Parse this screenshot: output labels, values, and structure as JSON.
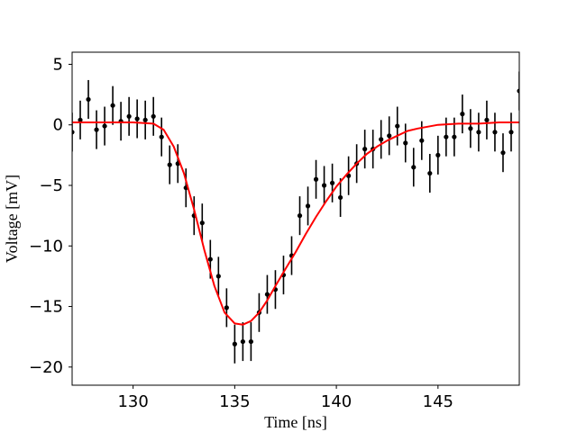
{
  "chart_data": {
    "type": "scatter",
    "xlabel": "Time [ns]",
    "ylabel": "Voltage [mV]",
    "xlim": [
      127,
      149
    ],
    "ylim": [
      -21.5,
      6
    ],
    "x_ticks": [
      130,
      135,
      140,
      145
    ],
    "x_tick_labels": [
      "130",
      "135",
      "140",
      "145"
    ],
    "y_ticks": [
      5,
      0,
      -5,
      -10,
      -15,
      -20
    ],
    "y_tick_labels": [
      "5",
      "0",
      "−5",
      "−10",
      "−15",
      "−20"
    ],
    "grid": false,
    "legend": "none",
    "colors": {
      "points": "#000000",
      "fit": "#ff0000",
      "axes": "#000000"
    },
    "series": [
      {
        "kind": "errorbar-points",
        "x": [
          127.0,
          127.4,
          127.8,
          128.2,
          128.6,
          129.0,
          129.4,
          129.8,
          130.2,
          130.6,
          131.0,
          131.4,
          131.8,
          132.2,
          132.6,
          133.0,
          133.4,
          133.8,
          134.2,
          134.6,
          135.0,
          135.4,
          135.8,
          136.2,
          136.6,
          137.0,
          137.4,
          137.8,
          138.2,
          138.6,
          139.0,
          139.4,
          139.8,
          140.2,
          140.6,
          141.0,
          141.4,
          141.8,
          142.2,
          142.6,
          143.0,
          143.4,
          143.8,
          144.2,
          144.6,
          145.0,
          145.4,
          145.8,
          146.2,
          146.6,
          147.0,
          147.4,
          147.8,
          148.2,
          148.6,
          149.0
        ],
        "y": [
          -0.6,
          0.4,
          2.1,
          -0.4,
          -0.1,
          1.6,
          0.3,
          0.7,
          0.5,
          0.4,
          0.7,
          -1.0,
          -3.3,
          -3.2,
          -5.2,
          -7.5,
          -8.1,
          -11.1,
          -12.5,
          -15.1,
          -18.1,
          -17.9,
          -17.9,
          -15.5,
          -14.0,
          -13.6,
          -12.4,
          -10.8,
          -7.5,
          -6.7,
          -4.5,
          -5.0,
          -4.8,
          -6.0,
          -4.2,
          -3.2,
          -2.0,
          -2.0,
          -1.2,
          -0.9,
          -0.1,
          -1.5,
          -3.5,
          -1.3,
          -4.0,
          -2.5,
          -1.0,
          -1.0,
          0.9,
          -0.3,
          -0.6,
          0.4,
          -0.6,
          -2.3,
          -0.6,
          2.8
        ],
        "yerr": [
          1.6,
          1.6,
          1.6,
          1.6,
          1.6,
          1.6,
          1.6,
          1.6,
          1.6,
          1.6,
          1.6,
          1.6,
          1.6,
          1.6,
          1.6,
          1.6,
          1.6,
          1.6,
          1.6,
          1.6,
          1.6,
          1.6,
          1.6,
          1.6,
          1.6,
          1.6,
          1.6,
          1.6,
          1.6,
          1.6,
          1.6,
          1.6,
          1.6,
          1.6,
          1.6,
          1.6,
          1.6,
          1.6,
          1.6,
          1.6,
          1.6,
          1.6,
          1.6,
          1.6,
          1.6,
          1.6,
          1.6,
          1.6,
          1.6,
          1.6,
          1.6,
          1.6,
          1.6,
          1.6,
          1.6,
          1.6
        ]
      },
      {
        "kind": "fit-curve",
        "x": [
          127.0,
          128.0,
          129.0,
          130.0,
          131.0,
          131.5,
          132.0,
          132.5,
          133.0,
          133.5,
          134.0,
          134.5,
          135.0,
          135.4,
          135.8,
          136.2,
          136.6,
          137.0,
          137.5,
          138.0,
          138.5,
          139.0,
          139.5,
          140.0,
          140.5,
          141.0,
          141.5,
          142.0,
          142.5,
          143.0,
          143.5,
          144.0,
          145.0,
          146.0,
          147.0,
          148.0,
          149.0
        ],
        "y": [
          0.2,
          0.2,
          0.2,
          0.2,
          0.1,
          -0.4,
          -1.8,
          -4.0,
          -7.0,
          -10.3,
          -13.3,
          -15.5,
          -16.4,
          -16.5,
          -16.2,
          -15.5,
          -14.5,
          -13.3,
          -11.9,
          -10.5,
          -9.0,
          -7.6,
          -6.3,
          -5.1,
          -4.1,
          -3.2,
          -2.4,
          -1.8,
          -1.3,
          -0.9,
          -0.5,
          -0.3,
          0.0,
          0.1,
          0.1,
          0.2,
          0.2
        ]
      }
    ]
  }
}
